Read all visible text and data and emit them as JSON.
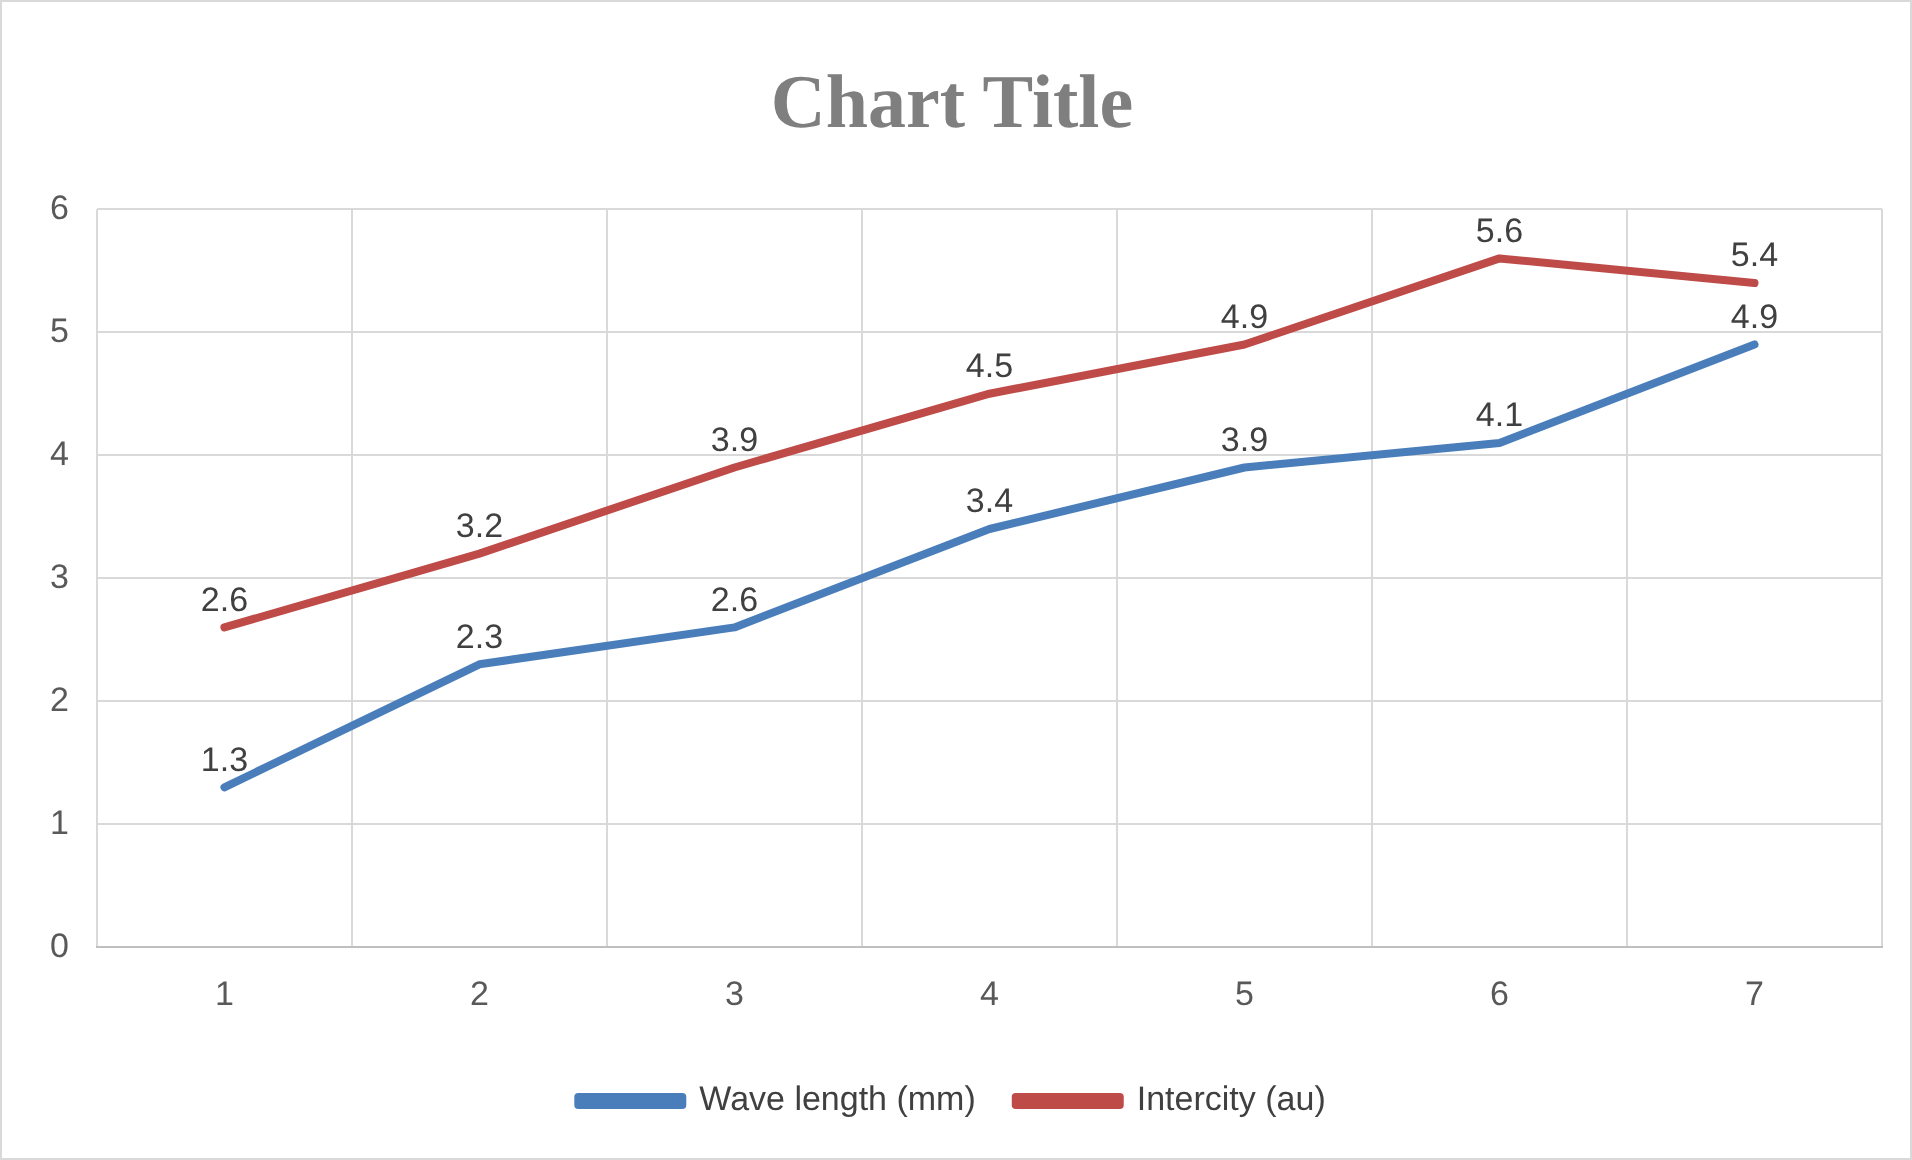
{
  "chart_data": {
    "type": "line",
    "title": "Chart Title",
    "categories": [
      "1",
      "2",
      "3",
      "4",
      "5",
      "6",
      "7"
    ],
    "series": [
      {
        "name": "Wave length (mm)",
        "color": "#4a7ebb",
        "values": [
          1.3,
          2.3,
          2.6,
          3.4,
          3.9,
          4.1,
          4.9
        ]
      },
      {
        "name": "Intercity (au)",
        "color": "#be4b48",
        "values": [
          2.6,
          3.2,
          3.9,
          4.5,
          4.9,
          5.6,
          5.4
        ]
      }
    ],
    "ylim": [
      0,
      6
    ],
    "yticks": [
      0,
      1,
      2,
      3,
      4,
      5,
      6
    ],
    "grid": true,
    "legend": "bottom",
    "data_labels": true,
    "marker": "none",
    "line_style": "solid"
  }
}
